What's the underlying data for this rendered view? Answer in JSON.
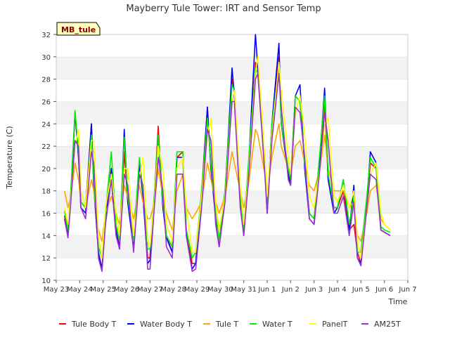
{
  "chart_data": {
    "type": "line",
    "title": "Mayberry Tule Tower: IRT and Sensor Temp",
    "xlabel": "Time",
    "ylabel": "Temperature (C)",
    "site_label": "MB_tule",
    "ylim": [
      10,
      32
    ],
    "yticks": [
      10,
      12,
      14,
      16,
      18,
      20,
      22,
      24,
      26,
      28,
      30,
      32
    ],
    "xlim": [
      0,
      15
    ],
    "xticks": [
      {
        "x": 0,
        "label": "May 23"
      },
      {
        "x": 1,
        "label": "May 24"
      },
      {
        "x": 2,
        "label": "May 25"
      },
      {
        "x": 3,
        "label": "May 26"
      },
      {
        "x": 4,
        "label": "May 27"
      },
      {
        "x": 5,
        "label": "May 28"
      },
      {
        "x": 6,
        "label": "May 29"
      },
      {
        "x": 7,
        "label": "May 30"
      },
      {
        "x": 8,
        "label": "May 31"
      },
      {
        "x": 9,
        "label": "Jun 1"
      },
      {
        "x": 10,
        "label": "Jun 2"
      },
      {
        "x": 11,
        "label": "Jun 3"
      },
      {
        "x": 12,
        "label": "Jun 4"
      },
      {
        "x": 13,
        "label": "Jun 5"
      },
      {
        "x": 14,
        "label": "Jun 6"
      },
      {
        "x": 15,
        "label": "Jun 7"
      }
    ],
    "x_unit": "days since May 23",
    "grid": "horizontal bands",
    "legend_position": "bottom",
    "series": [
      {
        "name": "Tule Body T",
        "color": "#ff0000",
        "x": [
          0.35,
          0.5,
          0.62,
          0.8,
          0.95,
          1.05,
          1.25,
          1.5,
          1.6,
          1.8,
          1.95,
          2.1,
          2.35,
          2.55,
          2.7,
          2.9,
          3.05,
          3.3,
          3.55,
          3.7,
          3.9,
          4.0,
          4.2,
          4.35,
          4.55,
          4.7,
          4.95,
          5.15,
          5.4,
          5.55,
          5.8,
          5.95,
          6.2,
          6.45,
          6.6,
          6.8,
          6.95,
          7.2,
          7.5,
          7.6,
          7.85,
          8.0,
          8.2,
          8.5,
          8.6,
          8.9,
          9.0,
          9.2,
          9.5,
          9.6,
          9.9,
          10.0,
          10.2,
          10.4,
          10.6,
          10.8,
          11.0,
          11.25,
          11.45,
          11.6,
          11.85,
          12.0,
          12.25,
          12.5,
          12.7,
          12.85,
          13.0,
          13.25,
          13.4,
          13.65,
          13.85,
          14.0,
          14.25
        ],
        "y": [
          15.8,
          14.0,
          17.5,
          25.0,
          21.0,
          17.0,
          16.5,
          24.0,
          18.5,
          12.5,
          11.0,
          16.0,
          20.0,
          14.5,
          13.0,
          21.5,
          17.0,
          13.0,
          20.5,
          17.5,
          12.0,
          12.0,
          18.0,
          23.8,
          16.5,
          14.0,
          12.5,
          21.0,
          21.5,
          14.5,
          11.5,
          11.5,
          18.0,
          25.5,
          20.0,
          16.0,
          13.5,
          18.0,
          28.0,
          27.0,
          17.5,
          14.5,
          20.0,
          29.5,
          29.0,
          20.0,
          16.0,
          24.0,
          30.0,
          24.0,
          19.5,
          19.0,
          26.5,
          26.0,
          20.5,
          16.0,
          15.5,
          21.0,
          26.0,
          19.0,
          16.5,
          16.5,
          18.0,
          14.5,
          15.0,
          12.5,
          11.5,
          17.0,
          20.5,
          20.0,
          14.5,
          14.3,
          14.0
        ]
      },
      {
        "name": "Water Body T",
        "color": "#0000ff",
        "x": [
          0.35,
          0.5,
          0.62,
          0.8,
          0.95,
          1.05,
          1.25,
          1.5,
          1.6,
          1.8,
          1.95,
          2.1,
          2.35,
          2.55,
          2.7,
          2.9,
          3.05,
          3.3,
          3.55,
          3.7,
          3.9,
          4.0,
          4.2,
          4.35,
          4.55,
          4.7,
          4.95,
          5.15,
          5.4,
          5.55,
          5.8,
          5.95,
          6.2,
          6.45,
          6.6,
          6.8,
          6.95,
          7.2,
          7.5,
          7.6,
          7.85,
          8.0,
          8.2,
          8.5,
          8.6,
          8.9,
          9.0,
          9.2,
          9.5,
          9.6,
          9.9,
          10.0,
          10.2,
          10.4,
          10.6,
          10.8,
          11.0,
          11.25,
          11.45,
          11.6,
          11.85,
          12.0,
          12.25,
          12.5,
          12.7,
          12.85,
          13.0,
          13.25,
          13.4,
          13.65,
          13.85,
          14.0,
          14.25
        ],
        "y": [
          15.5,
          14.0,
          17.5,
          25.0,
          21.0,
          16.5,
          16.0,
          24.0,
          18.5,
          12.5,
          11.0,
          15.5,
          20.0,
          14.5,
          12.8,
          23.5,
          17.0,
          12.8,
          20.5,
          17.5,
          11.5,
          11.8,
          17.5,
          23.0,
          16.5,
          13.8,
          12.5,
          21.0,
          21.0,
          14.0,
          11.0,
          11.5,
          17.5,
          25.5,
          20.0,
          15.5,
          13.0,
          17.5,
          29.0,
          26.5,
          17.0,
          14.0,
          20.0,
          32.0,
          29.0,
          20.0,
          16.0,
          24.0,
          31.2,
          24.0,
          19.5,
          18.5,
          26.5,
          27.5,
          20.0,
          15.5,
          15.0,
          21.0,
          27.2,
          19.0,
          16.0,
          16.5,
          19.0,
          14.5,
          18.5,
          12.0,
          11.5,
          17.0,
          21.5,
          20.5,
          14.5,
          14.3,
          14.0
        ]
      },
      {
        "name": "Tule T",
        "color": "#ffa500",
        "x": [
          0.35,
          0.5,
          0.62,
          0.8,
          0.95,
          1.05,
          1.25,
          1.5,
          1.6,
          1.8,
          1.95,
          2.1,
          2.35,
          2.55,
          2.7,
          2.9,
          3.05,
          3.3,
          3.55,
          3.7,
          3.9,
          4.0,
          4.2,
          4.35,
          4.55,
          4.7,
          4.95,
          5.15,
          5.4,
          5.55,
          5.8,
          5.95,
          6.2,
          6.45,
          6.6,
          6.8,
          6.95,
          7.2,
          7.5,
          7.6,
          7.85,
          8.0,
          8.2,
          8.5,
          8.6,
          8.9,
          9.0,
          9.2,
          9.5,
          9.6,
          9.9,
          10.0,
          10.2,
          10.4,
          10.6,
          10.8,
          11.0,
          11.25,
          11.45,
          11.6,
          11.85,
          12.0,
          12.25,
          12.5,
          12.7,
          12.85,
          13.0,
          13.25,
          13.4,
          13.65,
          13.85,
          14.0,
          14.25
        ],
        "y": [
          18.0,
          16.5,
          17.5,
          20.5,
          19.0,
          17.0,
          16.5,
          19.0,
          18.0,
          14.5,
          13.5,
          16.0,
          17.5,
          16.0,
          15.0,
          18.5,
          17.5,
          15.5,
          18.5,
          17.0,
          15.5,
          15.5,
          17.0,
          20.0,
          17.5,
          16.0,
          14.5,
          18.0,
          19.5,
          16.5,
          15.5,
          16.0,
          17.0,
          20.5,
          19.0,
          17.0,
          16.0,
          17.5,
          21.5,
          20.5,
          18.0,
          16.5,
          18.5,
          23.5,
          23.0,
          19.5,
          18.0,
          21.0,
          24.0,
          22.0,
          20.0,
          19.5,
          22.0,
          22.5,
          20.5,
          18.5,
          18.0,
          20.0,
          23.0,
          20.0,
          18.0,
          18.0,
          18.0,
          16.5,
          17.0,
          14.0,
          13.5,
          16.0,
          18.0,
          18.5,
          15.5,
          15.0,
          14.5
        ]
      },
      {
        "name": "Water T",
        "color": "#00ee00",
        "x": [
          0.35,
          0.5,
          0.62,
          0.8,
          0.95,
          1.05,
          1.25,
          1.5,
          1.6,
          1.8,
          1.95,
          2.1,
          2.35,
          2.55,
          2.7,
          2.9,
          3.05,
          3.3,
          3.55,
          3.7,
          3.9,
          4.0,
          4.2,
          4.35,
          4.55,
          4.7,
          4.95,
          5.15,
          5.4,
          5.55,
          5.8,
          5.95,
          6.2,
          6.45,
          6.6,
          6.8,
          6.95,
          7.2,
          7.5,
          7.6,
          7.85,
          8.0,
          8.2,
          8.5,
          8.6,
          8.9,
          9.0,
          9.2,
          9.5,
          9.6,
          9.9,
          10.0,
          10.2,
          10.4,
          10.6,
          10.8,
          11.0,
          11.25,
          11.45,
          11.6,
          11.85,
          12.0,
          12.25,
          12.5,
          12.7,
          12.85,
          13.0,
          13.25,
          13.4,
          13.65,
          13.85,
          14.0,
          14.25
        ],
        "y": [
          16.2,
          14.5,
          18.0,
          25.2,
          21.5,
          17.0,
          16.5,
          23.0,
          19.0,
          13.0,
          12.0,
          16.0,
          21.5,
          15.0,
          13.5,
          22.8,
          17.5,
          13.5,
          21.0,
          18.0,
          12.8,
          12.8,
          18.0,
          23.0,
          17.0,
          14.0,
          13.0,
          21.5,
          21.5,
          14.5,
          12.0,
          12.5,
          18.0,
          24.5,
          20.5,
          16.0,
          13.5,
          18.0,
          27.5,
          27.0,
          17.5,
          14.5,
          20.5,
          29.0,
          28.5,
          20.0,
          16.5,
          24.0,
          29.0,
          24.0,
          20.0,
          19.0,
          26.5,
          26.0,
          20.5,
          16.0,
          15.5,
          21.5,
          26.5,
          19.5,
          16.5,
          16.5,
          19.0,
          15.0,
          17.5,
          12.5,
          12.5,
          17.5,
          21.0,
          20.0,
          14.8,
          14.5,
          14.3
        ]
      },
      {
        "name": "PanelT",
        "color": "#ffff00",
        "x": [
          0.35,
          0.5,
          0.62,
          0.8,
          0.95,
          1.05,
          1.25,
          1.5,
          1.6,
          1.8,
          1.95,
          2.1,
          2.35,
          2.55,
          2.7,
          2.9,
          3.05,
          3.3,
          3.55,
          3.7,
          3.9,
          4.0,
          4.2,
          4.35,
          4.55,
          4.7,
          4.95,
          5.15,
          5.4,
          5.55,
          5.8,
          5.95,
          6.2,
          6.45,
          6.6,
          6.8,
          6.95,
          7.2,
          7.5,
          7.6,
          7.85,
          8.0,
          8.2,
          8.5,
          8.6,
          8.9,
          9.0,
          9.2,
          9.5,
          9.6,
          9.9,
          10.0,
          10.2,
          10.4,
          10.6,
          10.8,
          11.0,
          11.25,
          11.45,
          11.6,
          11.85,
          12.0,
          12.25,
          12.5,
          12.7,
          12.85,
          13.0,
          13.25,
          13.4,
          13.65,
          13.85,
          14.0,
          14.25
        ],
        "y": [
          16.5,
          15.0,
          17.5,
          22.0,
          23.5,
          18.0,
          16.5,
          22.5,
          22.5,
          14.0,
          12.0,
          16.5,
          19.5,
          16.0,
          14.0,
          20.0,
          20.0,
          14.0,
          19.0,
          21.0,
          13.5,
          13.0,
          17.5,
          22.0,
          20.0,
          15.0,
          13.5,
          20.0,
          21.0,
          16.5,
          12.5,
          12.5,
          17.5,
          23.0,
          24.5,
          17.0,
          14.5,
          17.5,
          26.0,
          27.0,
          18.5,
          15.0,
          19.5,
          28.5,
          30.0,
          21.0,
          17.5,
          23.0,
          29.5,
          27.0,
          21.0,
          19.5,
          25.0,
          26.5,
          23.0,
          17.5,
          16.5,
          20.0,
          24.0,
          24.5,
          17.5,
          17.0,
          18.5,
          16.5,
          18.0,
          13.5,
          12.0,
          16.5,
          19.5,
          20.5,
          16.0,
          15.0,
          14.5
        ]
      },
      {
        "name": "AM25T",
        "color": "#9a32cd",
        "x": [
          0.35,
          0.5,
          0.62,
          0.8,
          0.95,
          1.05,
          1.25,
          1.5,
          1.6,
          1.8,
          1.95,
          2.1,
          2.35,
          2.55,
          2.7,
          2.9,
          3.05,
          3.3,
          3.55,
          3.7,
          3.9,
          4.0,
          4.2,
          4.35,
          4.55,
          4.7,
          4.95,
          5.15,
          5.4,
          5.55,
          5.8,
          5.95,
          6.2,
          6.45,
          6.6,
          6.8,
          6.95,
          7.2,
          7.5,
          7.6,
          7.85,
          8.0,
          8.2,
          8.5,
          8.6,
          8.9,
          9.0,
          9.2,
          9.5,
          9.6,
          9.9,
          10.0,
          10.2,
          10.4,
          10.6,
          10.8,
          11.0,
          11.25,
          11.45,
          11.6,
          11.85,
          12.0,
          12.25,
          12.5,
          12.7,
          12.85,
          13.0,
          13.25,
          13.4,
          13.65,
          13.85,
          14.0,
          14.25
        ],
        "y": [
          15.5,
          13.8,
          17.0,
          22.5,
          22.0,
          16.5,
          15.5,
          21.5,
          20.5,
          12.0,
          10.8,
          15.0,
          19.0,
          14.0,
          12.8,
          19.5,
          18.5,
          12.5,
          19.5,
          18.5,
          11.0,
          11.0,
          17.0,
          21.0,
          18.0,
          13.0,
          12.0,
          19.5,
          19.5,
          14.0,
          10.8,
          11.0,
          16.5,
          23.5,
          22.5,
          15.0,
          13.0,
          17.0,
          26.0,
          26.0,
          16.5,
          14.0,
          19.0,
          28.0,
          28.5,
          19.5,
          16.0,
          22.5,
          28.5,
          25.5,
          19.0,
          18.5,
          25.5,
          25.0,
          21.0,
          15.5,
          15.0,
          20.0,
          25.0,
          22.5,
          16.0,
          16.0,
          17.5,
          14.0,
          17.0,
          12.0,
          11.3,
          16.5,
          19.5,
          19.0,
          14.5,
          14.3,
          14.0
        ]
      }
    ]
  }
}
